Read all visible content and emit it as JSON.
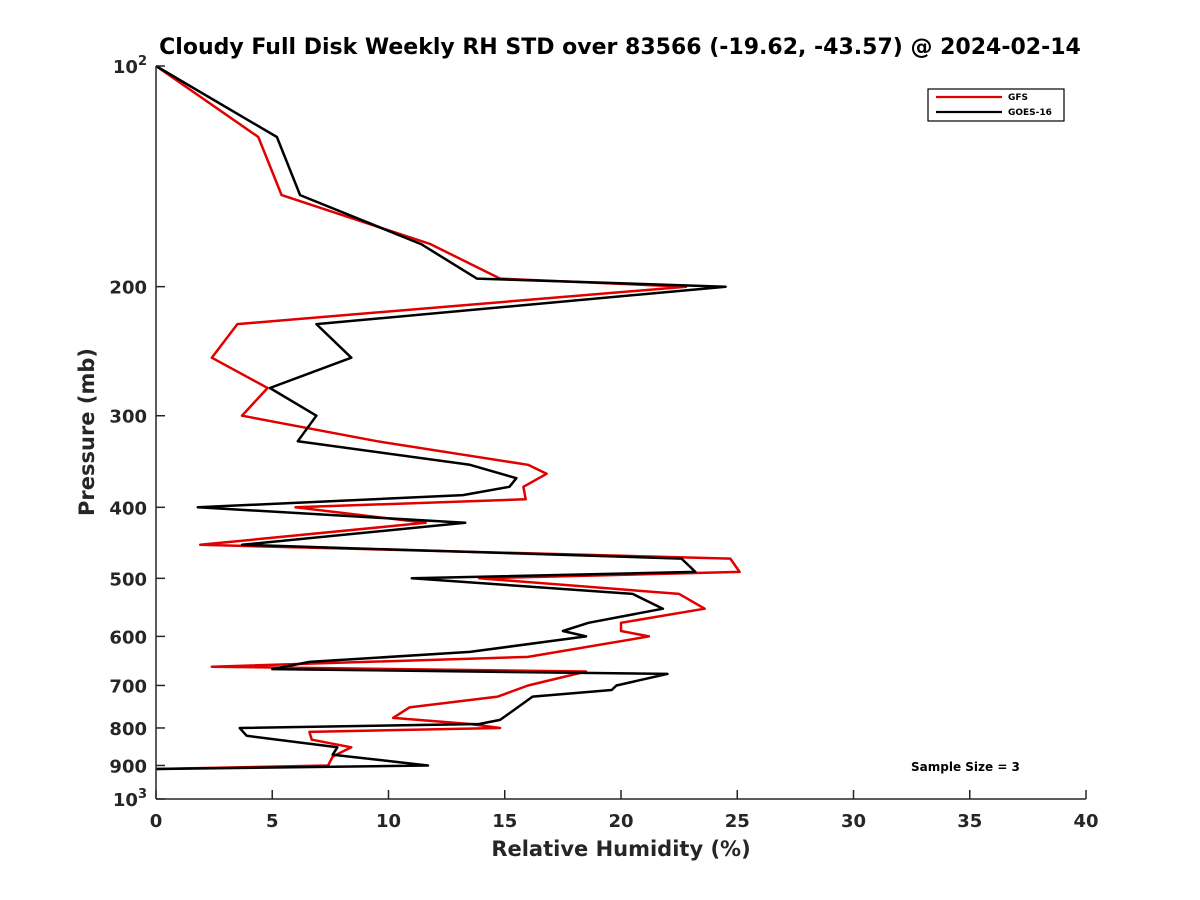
{
  "chart_data": {
    "type": "line",
    "title": "Cloudy Full Disk Weekly RH STD over 83566 (-19.62, -43.57) @ 2024-02-14",
    "xlabel": "Relative Humidity (%)",
    "ylabel": "Pressure (mb)",
    "xlim": [
      0,
      40
    ],
    "ylim": [
      100,
      1000
    ],
    "yscale": "log",
    "y_reversed": true,
    "grid": false,
    "legend_position": "top-right",
    "x_ticks": [
      "0",
      "5",
      "10",
      "15",
      "20",
      "25",
      "30",
      "35",
      "40"
    ],
    "y_ticks": [
      {
        "value": 100,
        "base": "10",
        "exp": "2"
      },
      {
        "value": 200,
        "label": "200"
      },
      {
        "value": 300,
        "label": "300"
      },
      {
        "value": 400,
        "label": "400"
      },
      {
        "value": 500,
        "label": "500"
      },
      {
        "value": 600,
        "label": "600"
      },
      {
        "value": 700,
        "label": "700"
      },
      {
        "value": 800,
        "label": "800"
      },
      {
        "value": 900,
        "label": "900"
      },
      {
        "value": 1000,
        "base": "10",
        "exp": "3"
      }
    ],
    "annotation": "Sample Size = 3",
    "series": [
      {
        "name": "GFS",
        "color": "#e00000",
        "points": [
          [
            0.0,
            100
          ],
          [
            4.4,
            125
          ],
          [
            5.4,
            150
          ],
          [
            11.8,
            175
          ],
          [
            14.8,
            195
          ],
          [
            22.8,
            200
          ],
          [
            3.5,
            225
          ],
          [
            2.4,
            250
          ],
          [
            4.8,
            275
          ],
          [
            3.7,
            300
          ],
          [
            9.5,
            325
          ],
          [
            16.0,
            350
          ],
          [
            16.8,
            360
          ],
          [
            15.8,
            375
          ],
          [
            15.9,
            390
          ],
          [
            6.0,
            400
          ],
          [
            11.6,
            420
          ],
          [
            1.9,
            450
          ],
          [
            24.7,
            470
          ],
          [
            25.1,
            490
          ],
          [
            13.9,
            500
          ],
          [
            22.5,
            525
          ],
          [
            23.6,
            550
          ],
          [
            20.0,
            575
          ],
          [
            20.0,
            590
          ],
          [
            21.2,
            600
          ],
          [
            16.0,
            640
          ],
          [
            2.4,
            660
          ],
          [
            18.5,
            670
          ],
          [
            16.0,
            700
          ],
          [
            14.7,
            725
          ],
          [
            10.9,
            750
          ],
          [
            10.2,
            775
          ],
          [
            13.5,
            790
          ],
          [
            14.8,
            800
          ],
          [
            6.6,
            810
          ],
          [
            6.7,
            830
          ],
          [
            8.4,
            850
          ],
          [
            7.6,
            875
          ],
          [
            7.4,
            900
          ],
          [
            0.0,
            910
          ]
        ]
      },
      {
        "name": "GOES-16",
        "color": "#000000",
        "points": [
          [
            0.0,
            100
          ],
          [
            5.2,
            125
          ],
          [
            6.2,
            150
          ],
          [
            11.4,
            175
          ],
          [
            13.8,
            195
          ],
          [
            24.5,
            200
          ],
          [
            6.9,
            225
          ],
          [
            8.4,
            250
          ],
          [
            4.9,
            275
          ],
          [
            6.9,
            300
          ],
          [
            6.1,
            325
          ],
          [
            13.5,
            350
          ],
          [
            15.5,
            365
          ],
          [
            15.2,
            375
          ],
          [
            13.2,
            385
          ],
          [
            1.8,
            400
          ],
          [
            13.3,
            420
          ],
          [
            3.7,
            450
          ],
          [
            22.6,
            470
          ],
          [
            23.2,
            490
          ],
          [
            11.0,
            500
          ],
          [
            20.5,
            525
          ],
          [
            21.8,
            550
          ],
          [
            18.6,
            575
          ],
          [
            17.5,
            590
          ],
          [
            18.5,
            600
          ],
          [
            13.5,
            630
          ],
          [
            6.6,
            650
          ],
          [
            5.0,
            665
          ],
          [
            22.0,
            675
          ],
          [
            19.8,
            700
          ],
          [
            19.6,
            710
          ],
          [
            16.2,
            725
          ],
          [
            15.3,
            760
          ],
          [
            14.8,
            780
          ],
          [
            13.9,
            790
          ],
          [
            3.6,
            800
          ],
          [
            3.9,
            820
          ],
          [
            7.8,
            850
          ],
          [
            7.6,
            870
          ],
          [
            11.7,
            900
          ],
          [
            0.0,
            910
          ]
        ]
      }
    ]
  }
}
